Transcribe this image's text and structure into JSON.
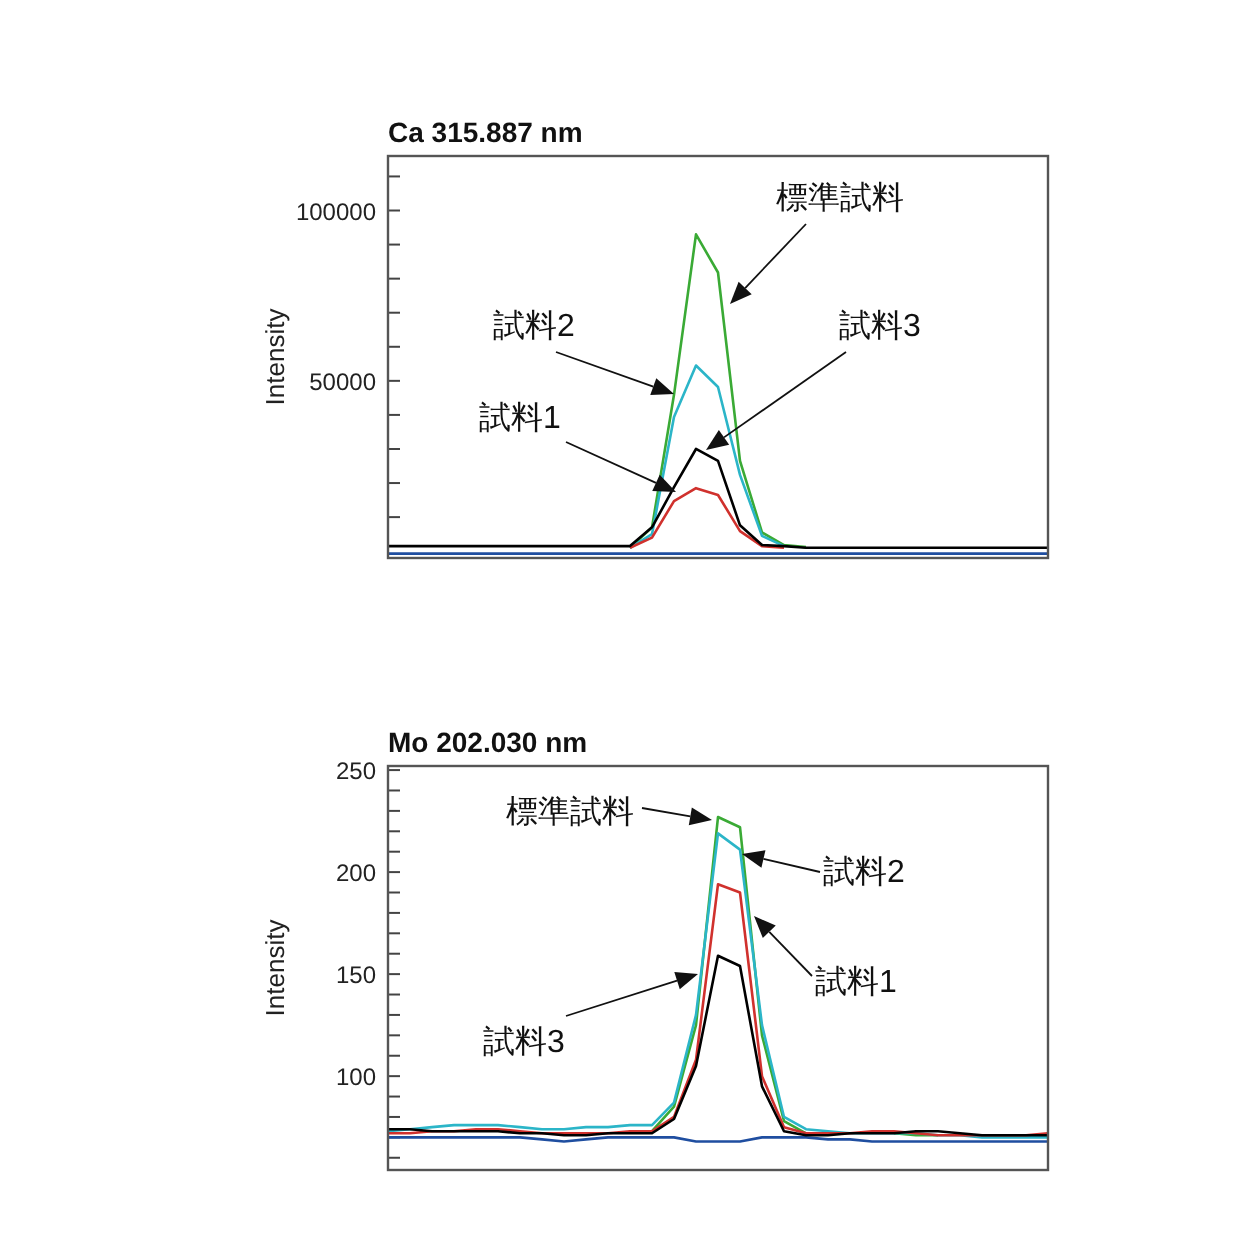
{
  "chart_data": [
    {
      "type": "line",
      "title": "Ca 315.887 nm",
      "ylabel": "Intensity",
      "tick_labels": "y",
      "categories": [
        null,
        null,
        null,
        null,
        null,
        null,
        null,
        null,
        null,
        null,
        null,
        null,
        null,
        null,
        null,
        null,
        null,
        null,
        null,
        null,
        null,
        null,
        null,
        null,
        null,
        null,
        null,
        null,
        null,
        null,
        null
      ],
      "ylim": [
        -2000,
        116000
      ],
      "yticks": [
        {
          "value": 10000,
          "label": null
        },
        {
          "value": 20000,
          "label": null
        },
        {
          "value": 30000,
          "label": null
        },
        {
          "value": 40000,
          "label": null
        },
        50000,
        {
          "value": 60000,
          "label": null
        },
        {
          "value": 70000,
          "label": null
        },
        {
          "value": 80000,
          "label": null
        },
        {
          "value": 90000,
          "label": null
        },
        100000,
        {
          "value": 110000,
          "label": null
        }
      ],
      "series": [
        {
          "color": "#1f4ea0",
          "values": [
            -700,
            -700,
            -700,
            -700,
            -700,
            -700,
            -700,
            -700,
            -700,
            -700,
            -700,
            -700,
            -700,
            -700,
            -700,
            -700,
            -700,
            -700,
            -700,
            -700,
            -700,
            -700,
            -700,
            -700,
            -700,
            -700,
            -700,
            -700,
            -700,
            -700,
            -700
          ]
        },
        {
          "name": "標準試料",
          "color": "#3aaa35",
          "values": [
            null,
            null,
            null,
            null,
            null,
            null,
            null,
            null,
            null,
            null,
            null,
            1000,
            7000,
            45900,
            93000,
            81800,
            26500,
            5500,
            1800,
            1200,
            null,
            null,
            null,
            null,
            null,
            null,
            null,
            null,
            null,
            null,
            null
          ]
        },
        {
          "name": "試料2",
          "color": "#2bb5c8",
          "values": [
            null,
            null,
            null,
            null,
            null,
            null,
            null,
            null,
            null,
            null,
            null,
            1000,
            5000,
            39400,
            54500,
            48200,
            22400,
            4500,
            1500,
            null,
            null,
            null,
            null,
            null,
            null,
            null,
            null,
            null,
            null,
            null,
            null
          ]
        },
        {
          "name": "試料1",
          "color": "#d0312d",
          "values": [
            null,
            null,
            null,
            null,
            null,
            null,
            null,
            null,
            null,
            null,
            null,
            1000,
            4000,
            14700,
            18500,
            16500,
            5900,
            1500,
            1000,
            null,
            null,
            null,
            null,
            null,
            null,
            null,
            null,
            null,
            null,
            null,
            null
          ]
        },
        {
          "name": "試料3",
          "color": "#000000",
          "values": [
            1500,
            1500,
            1500,
            1500,
            1500,
            1500,
            1500,
            1500,
            1500,
            1500,
            1500,
            1500,
            7000,
            18800,
            30000,
            26500,
            7600,
            1800,
            1500,
            1000,
            1000,
            1000,
            1000,
            1000,
            1000,
            1000,
            1000,
            1000,
            1000,
            1000,
            1000
          ]
        }
      ]
    },
    {
      "type": "line",
      "title": "Mo 202.030 nm",
      "ylabel": "Intensity",
      "tick_labels": "y",
      "categories": [
        null,
        null,
        null,
        null,
        null,
        null,
        null,
        null,
        null,
        null,
        null,
        null,
        null,
        null,
        null,
        null,
        null,
        null,
        null,
        null,
        null,
        null,
        null,
        null,
        null,
        null,
        null,
        null,
        null,
        null,
        null
      ],
      "ylim": [
        54,
        252
      ],
      "yticks": [
        {
          "value": 60,
          "label": null
        },
        {
          "value": 70,
          "label": null
        },
        {
          "value": 80,
          "label": null
        },
        {
          "value": 90,
          "label": null
        },
        100,
        {
          "value": 110,
          "label": null
        },
        {
          "value": 120,
          "label": null
        },
        {
          "value": 130,
          "label": null
        },
        {
          "value": 140,
          "label": null
        },
        150,
        {
          "value": 160,
          "label": null
        },
        {
          "value": 170,
          "label": null
        },
        {
          "value": 180,
          "label": null
        },
        {
          "value": 190,
          "label": null
        },
        200,
        {
          "value": 210,
          "label": null
        },
        {
          "value": 220,
          "label": null
        },
        {
          "value": 230,
          "label": null
        },
        {
          "value": 240,
          "label": null
        },
        250
      ],
      "series": [
        {
          "color": "#1f4ea0",
          "values": [
            70,
            70,
            70,
            70,
            70,
            70,
            70,
            69,
            68,
            69,
            70,
            70,
            70,
            70,
            68,
            68,
            68,
            70,
            70,
            70,
            69,
            69,
            68,
            68,
            68,
            68,
            68,
            68,
            68,
            68,
            68
          ]
        },
        {
          "name": "標準試料",
          "color": "#3aaa35",
          "values": [
            null,
            null,
            null,
            null,
            null,
            null,
            null,
            null,
            null,
            null,
            null,
            null,
            73,
            85,
            125,
            227,
            222,
            120,
            78,
            72,
            null,
            null,
            null,
            72,
            71,
            71,
            null,
            null,
            null,
            null,
            null
          ]
        },
        {
          "name": "試料2",
          "color": "#2bb5c8",
          "values": [
            73,
            74,
            75,
            76,
            76,
            76,
            75,
            74,
            74,
            75,
            75,
            76,
            76,
            87,
            130,
            219,
            211,
            125,
            80,
            74,
            73,
            72,
            72,
            72,
            72,
            71,
            71,
            70,
            70,
            70,
            70
          ]
        },
        {
          "name": "試料1",
          "color": "#d0312d",
          "values": [
            72,
            72,
            73,
            73,
            74,
            74,
            73,
            72,
            72,
            72,
            72,
            73,
            73,
            80,
            108,
            194,
            190,
            100,
            75,
            72,
            72,
            72,
            73,
            73,
            72,
            71,
            71,
            71,
            71,
            71,
            72
          ]
        },
        {
          "name": "試料3",
          "color": "#000000",
          "values": [
            74,
            74,
            73,
            73,
            73,
            73,
            72,
            72,
            71,
            71,
            72,
            72,
            72,
            79,
            105,
            159,
            154,
            95,
            73,
            71,
            71,
            72,
            72,
            72,
            73,
            73,
            72,
            71,
            71,
            71,
            71
          ]
        }
      ]
    }
  ]
}
